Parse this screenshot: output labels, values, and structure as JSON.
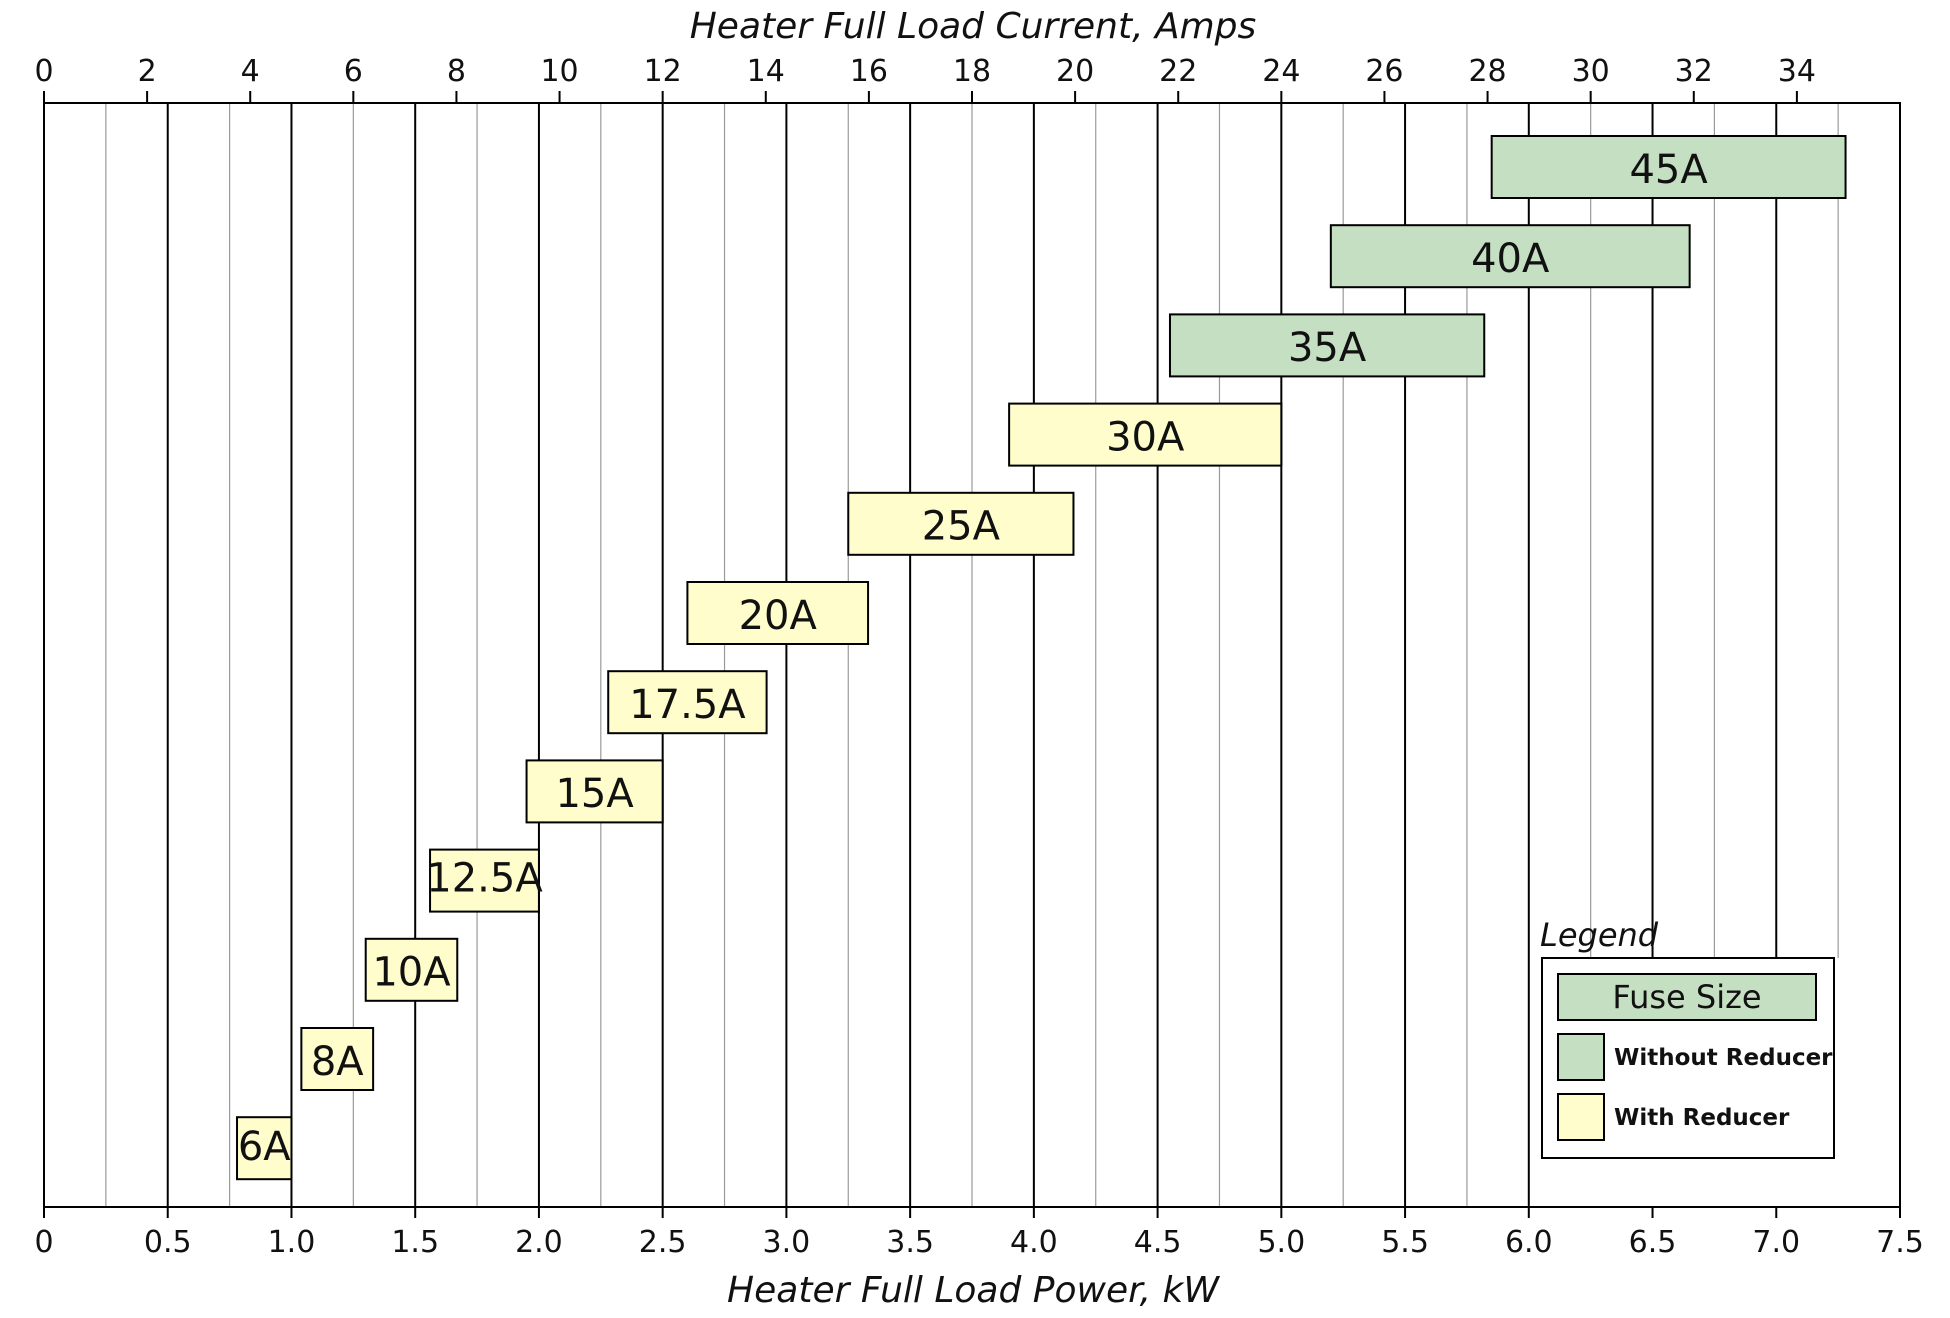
{
  "chart_data": {
    "type": "bar",
    "orientation": "horizontal-range",
    "x_axis": {
      "label": "Heater Full Load Power, kW",
      "min": 0,
      "max": 7.5,
      "ticks": [
        "0",
        "0.5",
        "1.0",
        "1.5",
        "2.0",
        "2.5",
        "3.0",
        "3.5",
        "4.0",
        "4.5",
        "5.0",
        "5.5",
        "6.0",
        "6.5",
        "7.0",
        "7.5"
      ]
    },
    "x2_axis": {
      "label": "Heater Full Load Current, Amps",
      "min": 0,
      "max": 36,
      "ticks": [
        "0",
        "2",
        "4",
        "6",
        "8",
        "10",
        "12",
        "14",
        "16",
        "18",
        "20",
        "22",
        "24",
        "26",
        "28",
        "30",
        "32",
        "34"
      ]
    },
    "grid": {
      "major_every_kw": 0.5,
      "minor_every_kw": 0.25
    },
    "bars": [
      {
        "label": "45A",
        "start_kw": 5.85,
        "end_kw": 7.28,
        "category": "without"
      },
      {
        "label": "40A",
        "start_kw": 5.2,
        "end_kw": 6.65,
        "category": "without"
      },
      {
        "label": "35A",
        "start_kw": 4.55,
        "end_kw": 5.82,
        "category": "without"
      },
      {
        "label": "30A",
        "start_kw": 3.9,
        "end_kw": 5.0,
        "category": "with"
      },
      {
        "label": "25A",
        "start_kw": 3.25,
        "end_kw": 4.16,
        "category": "with"
      },
      {
        "label": "20A",
        "start_kw": 2.6,
        "end_kw": 3.33,
        "category": "with"
      },
      {
        "label": "17.5A",
        "start_kw": 2.28,
        "end_kw": 2.92,
        "category": "with"
      },
      {
        "label": "15A",
        "start_kw": 1.95,
        "end_kw": 2.5,
        "category": "with"
      },
      {
        "label": "12.5A",
        "start_kw": 1.56,
        "end_kw": 2.0,
        "category": "with"
      },
      {
        "label": "10A",
        "start_kw": 1.3,
        "end_kw": 1.67,
        "category": "with"
      },
      {
        "label": "8A",
        "start_kw": 1.04,
        "end_kw": 1.33,
        "category": "with"
      },
      {
        "label": "6A",
        "start_kw": 0.78,
        "end_kw": 1.0,
        "category": "with"
      }
    ],
    "legend": {
      "title": "Legend",
      "header": "Fuse Size",
      "placement": "bottom-right",
      "entries": [
        {
          "key": "without",
          "label": "Without Reducer"
        },
        {
          "key": "with",
          "label": "With Reducer"
        }
      ]
    }
  },
  "colors": {
    "without": "#c5dfc2",
    "with": "#fefdcb",
    "major_grid": "#000000",
    "minor_grid": "#9a9a9a"
  }
}
